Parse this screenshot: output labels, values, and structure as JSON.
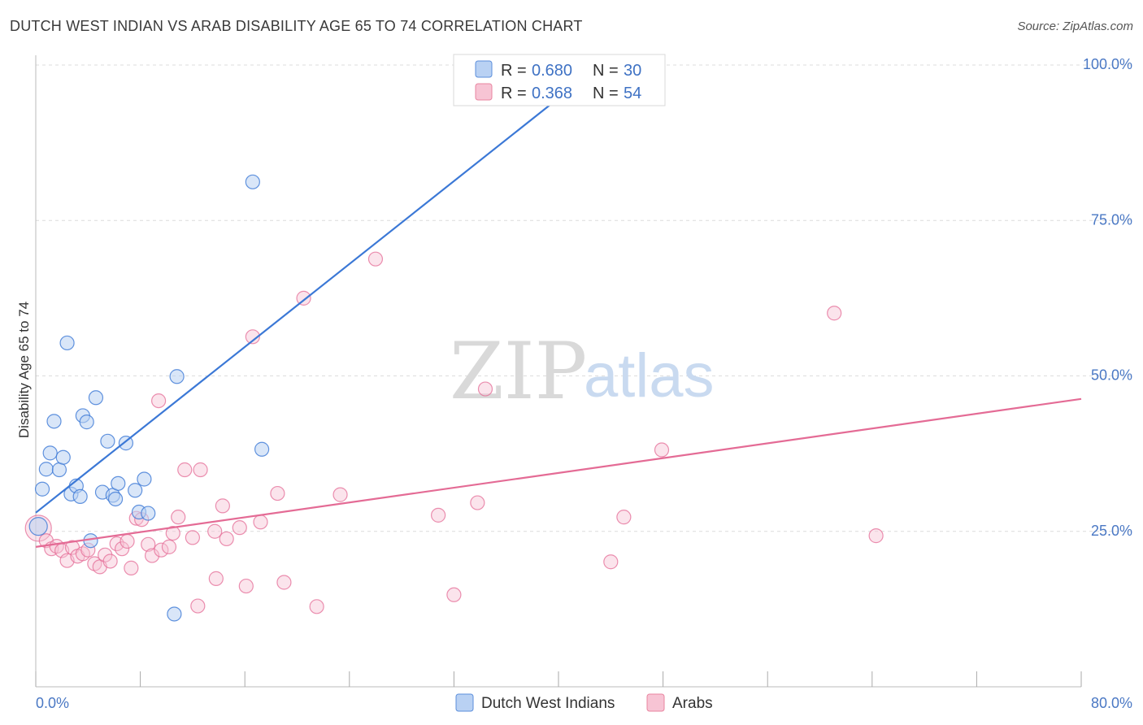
{
  "title": "DUTCH WEST INDIAN VS ARAB DISABILITY AGE 65 TO 74 CORRELATION CHART",
  "source": "Source: ZipAtlas.com",
  "watermark": {
    "zip": "ZIP",
    "atlas": "atlas"
  },
  "colors": {
    "blue": "#3b78d6",
    "blue_fill": "#b9d1f3",
    "pink": "#e46b95",
    "pink_fill": "#f7c4d4",
    "grid": "#dcdcdc"
  },
  "legend": {
    "r_label": "R =",
    "n_label": "N =",
    "rows": [
      {
        "r": "0.680",
        "n": "30"
      },
      {
        "r": "0.368",
        "n": "54"
      }
    ]
  },
  "chart_data": {
    "type": "scatter",
    "title": "DUTCH WEST INDIAN VS ARAB DISABILITY AGE 65 TO 74 CORRELATION CHART",
    "xlabel": "",
    "ylabel": "Disability Age 65 to 74",
    "xlim": [
      0,
      80
    ],
    "ylim": [
      0,
      100
    ],
    "x_tick_labels": [
      "0.0%",
      "80.0%"
    ],
    "y_ticks": [
      25,
      50,
      75,
      100
    ],
    "y_tick_labels": [
      "25.0%",
      "50.0%",
      "75.0%",
      "100.0%"
    ],
    "grid": true,
    "legend_position": "bottom",
    "series": [
      {
        "name": "Dutch West Indians",
        "color": "#3b78d6",
        "trend": {
          "x0": 0,
          "y0": 28.0,
          "x1": 40.5,
          "y1": 95.5
        },
        "points": [
          [
            0.2,
            25.8
          ],
          [
            0.5,
            31.8
          ],
          [
            0.8,
            35.0
          ],
          [
            1.1,
            37.6
          ],
          [
            1.4,
            42.7
          ],
          [
            1.8,
            34.9
          ],
          [
            2.1,
            36.9
          ],
          [
            2.4,
            55.3
          ],
          [
            2.7,
            31.0
          ],
          [
            3.1,
            32.3
          ],
          [
            3.4,
            30.6
          ],
          [
            3.6,
            43.6
          ],
          [
            3.9,
            42.6
          ],
          [
            4.2,
            23.5
          ],
          [
            4.6,
            46.5
          ],
          [
            5.1,
            31.3
          ],
          [
            5.5,
            39.5
          ],
          [
            5.9,
            30.8
          ],
          [
            6.1,
            30.2
          ],
          [
            6.3,
            32.7
          ],
          [
            6.9,
            39.2
          ],
          [
            7.6,
            31.6
          ],
          [
            7.9,
            28.1
          ],
          [
            8.3,
            33.4
          ],
          [
            8.6,
            27.9
          ],
          [
            10.6,
            11.7
          ],
          [
            10.8,
            49.9
          ],
          [
            16.6,
            81.2
          ],
          [
            17.3,
            38.2
          ],
          [
            35.3,
            100.3
          ]
        ]
      },
      {
        "name": "Arabs",
        "color": "#e46b95",
        "trend": {
          "x0": 0,
          "y0": 22.5,
          "x1": 80,
          "y1": 46.3
        },
        "points": [
          [
            0.2,
            25.5
          ],
          [
            0.8,
            23.5
          ],
          [
            1.2,
            22.2
          ],
          [
            1.6,
            22.6
          ],
          [
            2.0,
            21.9
          ],
          [
            2.4,
            20.3
          ],
          [
            2.8,
            22.4
          ],
          [
            3.2,
            21.0
          ],
          [
            3.6,
            21.4
          ],
          [
            4.0,
            22.0
          ],
          [
            4.5,
            19.8
          ],
          [
            4.9,
            19.3
          ],
          [
            5.3,
            21.2
          ],
          [
            5.7,
            20.2
          ],
          [
            6.2,
            23.0
          ],
          [
            6.6,
            22.2
          ],
          [
            7.0,
            23.4
          ],
          [
            7.3,
            19.1
          ],
          [
            7.7,
            27.1
          ],
          [
            8.1,
            26.9
          ],
          [
            8.6,
            22.9
          ],
          [
            8.9,
            21.1
          ],
          [
            9.4,
            46.0
          ],
          [
            9.6,
            22.0
          ],
          [
            10.2,
            22.5
          ],
          [
            10.5,
            24.7
          ],
          [
            10.9,
            27.3
          ],
          [
            11.4,
            34.9
          ],
          [
            12.0,
            24.0
          ],
          [
            12.4,
            13.0
          ],
          [
            12.6,
            34.9
          ],
          [
            13.7,
            25.0
          ],
          [
            13.8,
            17.4
          ],
          [
            14.3,
            29.1
          ],
          [
            14.6,
            23.8
          ],
          [
            15.6,
            25.6
          ],
          [
            16.1,
            16.2
          ],
          [
            16.6,
            56.3
          ],
          [
            17.2,
            26.5
          ],
          [
            18.5,
            31.1
          ],
          [
            19.0,
            16.8
          ],
          [
            20.5,
            62.5
          ],
          [
            21.5,
            12.9
          ],
          [
            23.3,
            30.9
          ],
          [
            26.0,
            68.8
          ],
          [
            30.8,
            27.6
          ],
          [
            32.0,
            14.8
          ],
          [
            33.8,
            29.6
          ],
          [
            34.4,
            47.9
          ],
          [
            44.0,
            20.1
          ],
          [
            45.0,
            27.3
          ],
          [
            47.9,
            38.1
          ],
          [
            61.1,
            60.1
          ],
          [
            64.3,
            24.3
          ]
        ]
      }
    ]
  }
}
